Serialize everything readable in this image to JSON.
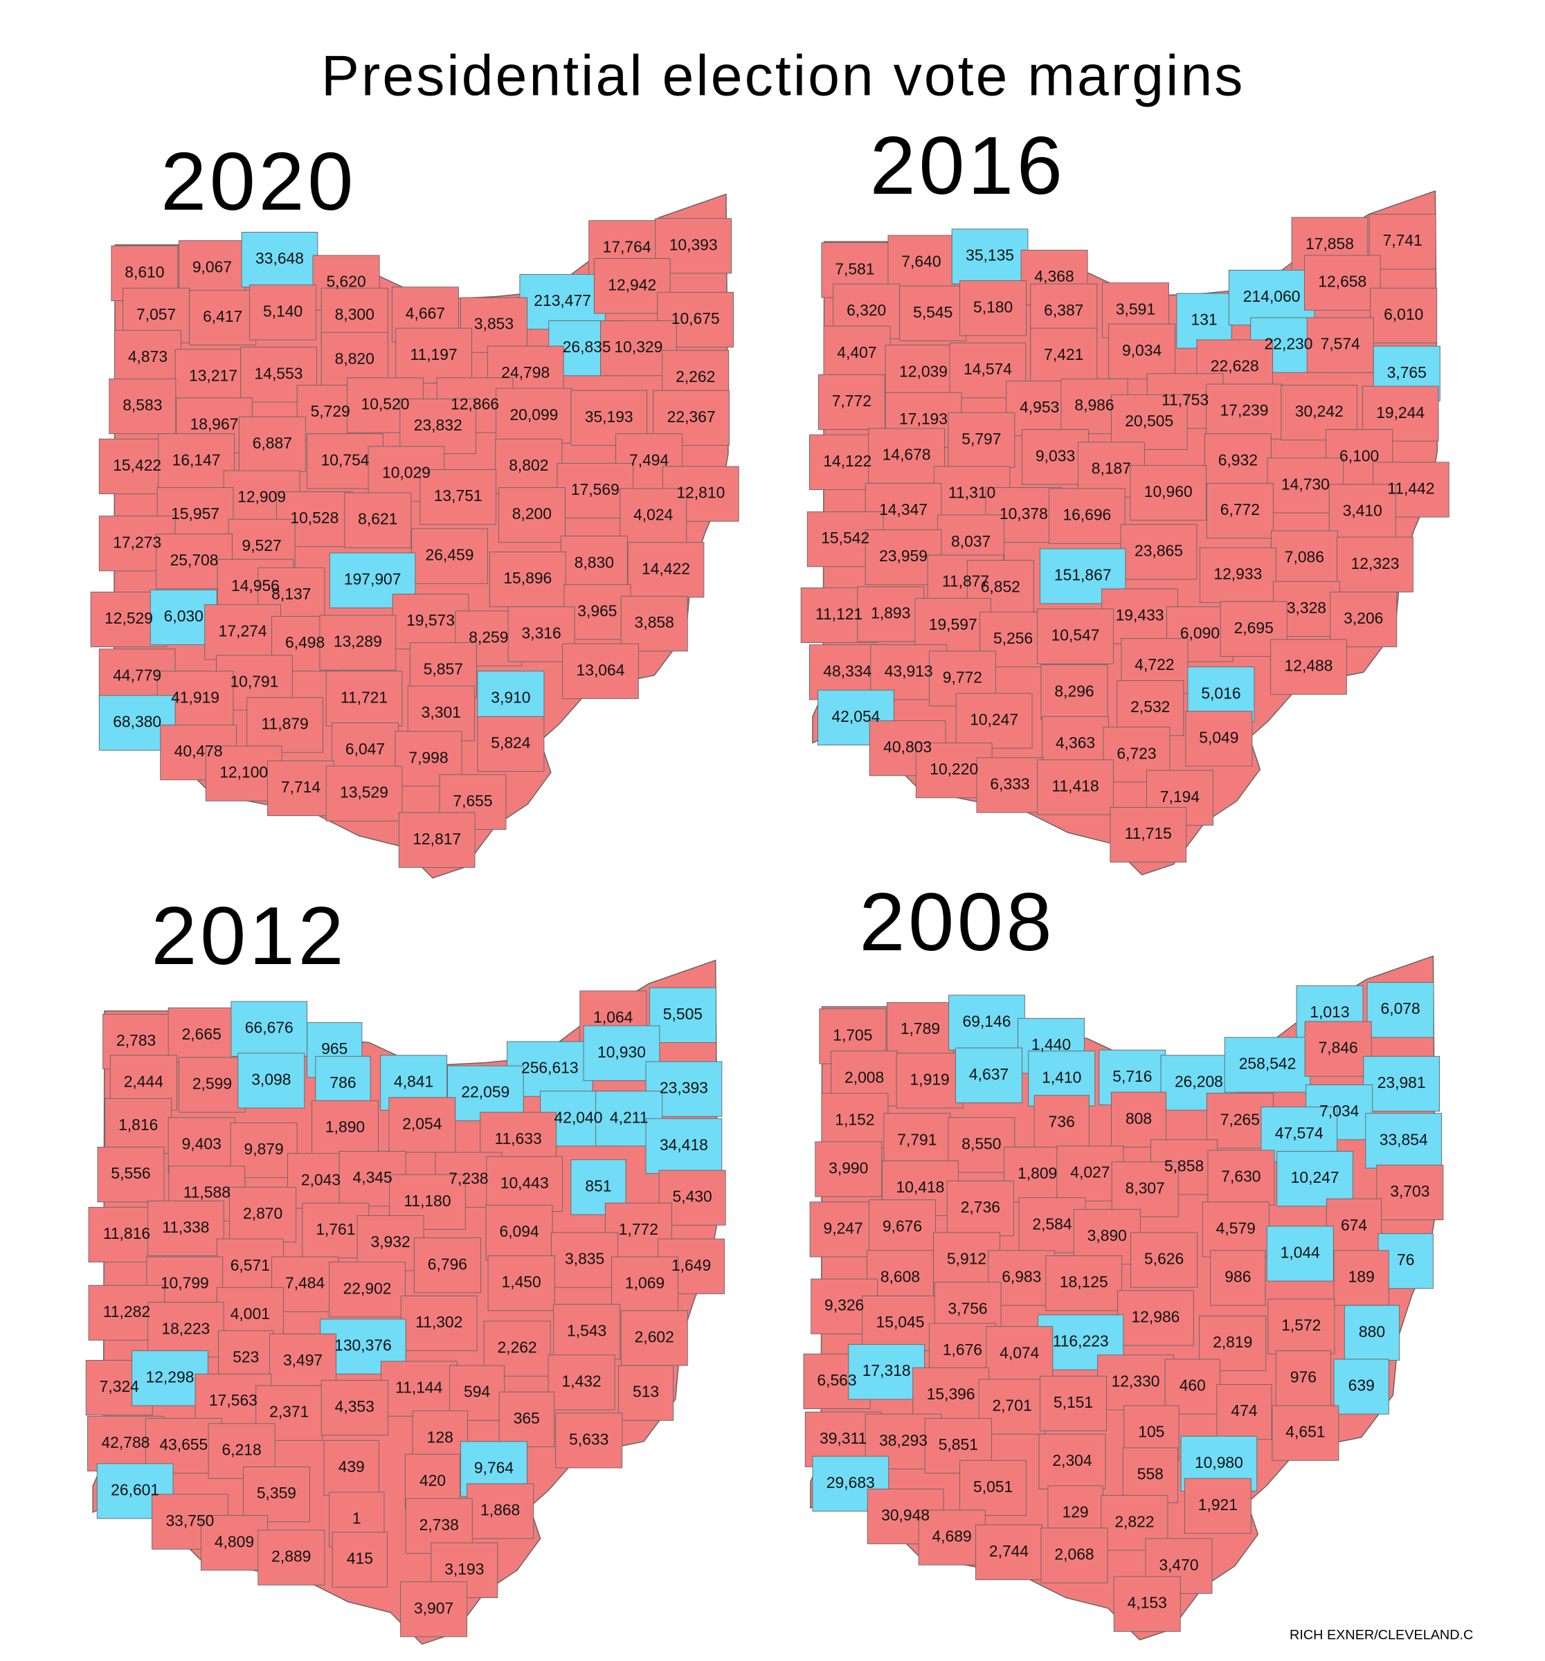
{
  "title": "Presidential election vote margins",
  "credit": "RICH EXNER/CLEVELAND.C",
  "colors": {
    "R": "#f27c7c",
    "D": "#70dcf6"
  },
  "maps": [
    {
      "year": "2020",
      "counties": [
        [
          "8,610",
          "R"
        ],
        [
          "9,067",
          "R"
        ],
        [
          "33,648",
          "D"
        ],
        [
          "5,620",
          "R"
        ],
        [
          "17,764",
          "R"
        ],
        [
          "10,393",
          "R"
        ],
        [
          "7,057",
          "R"
        ],
        [
          "6,417",
          "R"
        ],
        [
          "5,140",
          "R"
        ],
        [
          "8,300",
          "R"
        ],
        [
          "4,667",
          "R"
        ],
        [
          "213,477",
          "D"
        ],
        [
          "12,942",
          "R"
        ],
        [
          "3,853",
          "R"
        ],
        [
          "10,675",
          "R"
        ],
        [
          "4,873",
          "R"
        ],
        [
          "8,820",
          "R"
        ],
        [
          "11,197",
          "R"
        ],
        [
          "26,835",
          "D"
        ],
        [
          "10,329",
          "R"
        ],
        [
          "13,217",
          "R"
        ],
        [
          "14,553",
          "R"
        ],
        [
          "24,798",
          "R"
        ],
        [
          "2,262",
          "R"
        ],
        [
          "8,583",
          "R"
        ],
        [
          "5,729",
          "R"
        ],
        [
          "10,520",
          "R"
        ],
        [
          "12,866",
          "R"
        ],
        [
          "18,967",
          "R"
        ],
        [
          "23,832",
          "R"
        ],
        [
          "20,099",
          "R"
        ],
        [
          "35,193",
          "R"
        ],
        [
          "22,367",
          "R"
        ],
        [
          "6,887",
          "R"
        ],
        [
          "15,422",
          "R"
        ],
        [
          "16,147",
          "R"
        ],
        [
          "10,754",
          "R"
        ],
        [
          "10,029",
          "R"
        ],
        [
          "8,802",
          "R"
        ],
        [
          "7,494",
          "R"
        ],
        [
          "12,909",
          "R"
        ],
        [
          "13,751",
          "R"
        ],
        [
          "17,569",
          "R"
        ],
        [
          "12,810",
          "R"
        ],
        [
          "15,957",
          "R"
        ],
        [
          "10,528",
          "R"
        ],
        [
          "8,621",
          "R"
        ],
        [
          "8,200",
          "R"
        ],
        [
          "4,024",
          "R"
        ],
        [
          "17,273",
          "R"
        ],
        [
          "9,527",
          "R"
        ],
        [
          "25,708",
          "R"
        ],
        [
          "26,459",
          "R"
        ],
        [
          "8,830",
          "R"
        ],
        [
          "197,907",
          "D"
        ],
        [
          "15,896",
          "R"
        ],
        [
          "14,422",
          "R"
        ],
        [
          "14,956",
          "R"
        ],
        [
          "8,137",
          "R"
        ],
        [
          "12,529",
          "R"
        ],
        [
          "6,030",
          "D"
        ],
        [
          "17,274",
          "R"
        ],
        [
          "19,573",
          "R"
        ],
        [
          "3,965",
          "R"
        ],
        [
          "3,858",
          "R"
        ],
        [
          "6,498",
          "R"
        ],
        [
          "13,289",
          "R"
        ],
        [
          "8,259",
          "R"
        ],
        [
          "3,316",
          "R"
        ],
        [
          "44,779",
          "R"
        ],
        [
          "5,857",
          "R"
        ],
        [
          "13,064",
          "R"
        ],
        [
          "10,791",
          "R"
        ],
        [
          "41,919",
          "R"
        ],
        [
          "11,721",
          "R"
        ],
        [
          "3,910",
          "D"
        ],
        [
          "68,380",
          "D"
        ],
        [
          "3,301",
          "R"
        ],
        [
          "11,879",
          "R"
        ],
        [
          "6,047",
          "R"
        ],
        [
          "7,998",
          "R"
        ],
        [
          "5,824",
          "R"
        ],
        [
          "40,478",
          "R"
        ],
        [
          "12,100",
          "R"
        ],
        [
          "7,714",
          "R"
        ],
        [
          "13,529",
          "R"
        ],
        [
          "7,655",
          "R"
        ],
        [
          "12,817",
          "R"
        ]
      ]
    },
    {
      "year": "2016",
      "counties": [
        [
          "7,581",
          "R"
        ],
        [
          "7,640",
          "R"
        ],
        [
          "35,135",
          "D"
        ],
        [
          "4,368",
          "R"
        ],
        [
          "17,858",
          "R"
        ],
        [
          "7,741",
          "R"
        ],
        [
          "6,320",
          "R"
        ],
        [
          "5,545",
          "R"
        ],
        [
          "5,180",
          "R"
        ],
        [
          "6,387",
          "R"
        ],
        [
          "3,591",
          "R"
        ],
        [
          "131",
          "D"
        ],
        [
          "214,060",
          "D"
        ],
        [
          "12,658",
          "R"
        ],
        [
          "6,010",
          "R"
        ],
        [
          "4,407",
          "R"
        ],
        [
          "7,421",
          "R"
        ],
        [
          "9,034",
          "R"
        ],
        [
          "22,230",
          "D"
        ],
        [
          "7,574",
          "R"
        ],
        [
          "22,628",
          "R"
        ],
        [
          "12,039",
          "R"
        ],
        [
          "14,574",
          "R"
        ],
        [
          "3,765",
          "D"
        ],
        [
          "7,772",
          "R"
        ],
        [
          "4,953",
          "R"
        ],
        [
          "8,986",
          "R"
        ],
        [
          "11,753",
          "R"
        ],
        [
          "17,239",
          "R"
        ],
        [
          "30,242",
          "R"
        ],
        [
          "19,244",
          "R"
        ],
        [
          "17,193",
          "R"
        ],
        [
          "20,505",
          "R"
        ],
        [
          "5,797",
          "R"
        ],
        [
          "14,122",
          "R"
        ],
        [
          "14,678",
          "R"
        ],
        [
          "9,033",
          "R"
        ],
        [
          "8,187",
          "R"
        ],
        [
          "6,932",
          "R"
        ],
        [
          "6,100",
          "R"
        ],
        [
          "11,310",
          "R"
        ],
        [
          "14,730",
          "R"
        ],
        [
          "11,442",
          "R"
        ],
        [
          "10,960",
          "R"
        ],
        [
          "14,347",
          "R"
        ],
        [
          "10,378",
          "R"
        ],
        [
          "16,696",
          "R"
        ],
        [
          "6,772",
          "R"
        ],
        [
          "3,410",
          "R"
        ],
        [
          "15,542",
          "R"
        ],
        [
          "8,037",
          "R"
        ],
        [
          "23,865",
          "R"
        ],
        [
          "7,086",
          "R"
        ],
        [
          "12,323",
          "R"
        ],
        [
          "23,959",
          "R"
        ],
        [
          "151,867",
          "D"
        ],
        [
          "12,933",
          "R"
        ],
        [
          "11,877",
          "R"
        ],
        [
          "6,852",
          "R"
        ],
        [
          "11,121",
          "R"
        ],
        [
          "1,893",
          "R"
        ],
        [
          "19,597",
          "R"
        ],
        [
          "19,433",
          "R"
        ],
        [
          "3,328",
          "R"
        ],
        [
          "3,206",
          "R"
        ],
        [
          "6,090",
          "R"
        ],
        [
          "2,695",
          "R"
        ],
        [
          "5,256",
          "R"
        ],
        [
          "10,547",
          "R"
        ],
        [
          "48,334",
          "R"
        ],
        [
          "43,913",
          "R"
        ],
        [
          "9,772",
          "R"
        ],
        [
          "4,722",
          "R"
        ],
        [
          "12,488",
          "R"
        ],
        [
          "5,016",
          "D"
        ],
        [
          "8,296",
          "R"
        ],
        [
          "2,532",
          "R"
        ],
        [
          "42,054",
          "D"
        ],
        [
          "10,247",
          "R"
        ],
        [
          "5,049",
          "R"
        ],
        [
          "40,803",
          "R"
        ],
        [
          "4,363",
          "R"
        ],
        [
          "6,723",
          "R"
        ],
        [
          "10,220",
          "R"
        ],
        [
          "6,333",
          "R"
        ],
        [
          "11,418",
          "R"
        ],
        [
          "7,194",
          "R"
        ],
        [
          "11,715",
          "R"
        ]
      ]
    },
    {
      "year": "2012",
      "counties": [
        [
          "2,783",
          "R"
        ],
        [
          "2,665",
          "R"
        ],
        [
          "66,676",
          "D"
        ],
        [
          "965",
          "D"
        ],
        [
          "1,064",
          "R"
        ],
        [
          "5,505",
          "D"
        ],
        [
          "2,444",
          "R"
        ],
        [
          "2,599",
          "R"
        ],
        [
          "3,098",
          "D"
        ],
        [
          "786",
          "D"
        ],
        [
          "4,841",
          "D"
        ],
        [
          "256,613",
          "D"
        ],
        [
          "10,930",
          "D"
        ],
        [
          "22,059",
          "D"
        ],
        [
          "23,393",
          "D"
        ],
        [
          "42,040",
          "D"
        ],
        [
          "4,211",
          "D"
        ],
        [
          "1,816",
          "R"
        ],
        [
          "1,890",
          "R"
        ],
        [
          "2,054",
          "R"
        ],
        [
          "9,403",
          "R"
        ],
        [
          "9,879",
          "R"
        ],
        [
          "11,633",
          "R"
        ],
        [
          "34,418",
          "D"
        ],
        [
          "5,556",
          "R"
        ],
        [
          "2,043",
          "R"
        ],
        [
          "4,345",
          "R"
        ],
        [
          "7,238",
          "R"
        ],
        [
          "10,443",
          "R"
        ],
        [
          "851",
          "D"
        ],
        [
          "11,588",
          "R"
        ],
        [
          "11,180",
          "R"
        ],
        [
          "5,430",
          "R"
        ],
        [
          "2,870",
          "R"
        ],
        [
          "11,816",
          "R"
        ],
        [
          "11,338",
          "R"
        ],
        [
          "1,761",
          "R"
        ],
        [
          "3,932",
          "R"
        ],
        [
          "6,094",
          "R"
        ],
        [
          "1,772",
          "R"
        ],
        [
          "6,796",
          "R"
        ],
        [
          "3,835",
          "R"
        ],
        [
          "1,649",
          "R"
        ],
        [
          "6,571",
          "R"
        ],
        [
          "10,799",
          "R"
        ],
        [
          "7,484",
          "R"
        ],
        [
          "22,902",
          "R"
        ],
        [
          "1,450",
          "R"
        ],
        [
          "1,069",
          "R"
        ],
        [
          "11,282",
          "R"
        ],
        [
          "4,001",
          "R"
        ],
        [
          "11,302",
          "R"
        ],
        [
          "18,223",
          "R"
        ],
        [
          "130,376",
          "D"
        ],
        [
          "1,543",
          "R"
        ],
        [
          "2,602",
          "R"
        ],
        [
          "2,262",
          "R"
        ],
        [
          "523",
          "R"
        ],
        [
          "3,497",
          "R"
        ],
        [
          "7,324",
          "R"
        ],
        [
          "12,298",
          "D"
        ],
        [
          "11,144",
          "R"
        ],
        [
          "594",
          "R"
        ],
        [
          "1,432",
          "R"
        ],
        [
          "513",
          "R"
        ],
        [
          "17,563",
          "R"
        ],
        [
          "2,371",
          "R"
        ],
        [
          "4,353",
          "R"
        ],
        [
          "365",
          "R"
        ],
        [
          "42,788",
          "R"
        ],
        [
          "43,655",
          "R"
        ],
        [
          "6,218",
          "R"
        ],
        [
          "128",
          "R"
        ],
        [
          "5,633",
          "R"
        ],
        [
          "9,764",
          "D"
        ],
        [
          "439",
          "R"
        ],
        [
          "420",
          "R"
        ],
        [
          "26,601",
          "D"
        ],
        [
          "5,359",
          "R"
        ],
        [
          "1,868",
          "R"
        ],
        [
          "33,750",
          "R"
        ],
        [
          "1",
          "R"
        ],
        [
          "2,738",
          "R"
        ],
        [
          "4,809",
          "R"
        ],
        [
          "2,889",
          "R"
        ],
        [
          "415",
          "R"
        ],
        [
          "3,193",
          "R"
        ],
        [
          "3,907",
          "R"
        ]
      ]
    },
    {
      "year": "2008",
      "counties": [
        [
          "1,705",
          "R"
        ],
        [
          "1,789",
          "R"
        ],
        [
          "69,146",
          "D"
        ],
        [
          "1,440",
          "D"
        ],
        [
          "1,013",
          "D"
        ],
        [
          "6,078",
          "D"
        ],
        [
          "2,008",
          "R"
        ],
        [
          "1,919",
          "R"
        ],
        [
          "4,637",
          "D"
        ],
        [
          "1,410",
          "D"
        ],
        [
          "5,716",
          "D"
        ],
        [
          "26,208",
          "D"
        ],
        [
          "258,542",
          "D"
        ],
        [
          "7,846",
          "R"
        ],
        [
          "23,981",
          "D"
        ],
        [
          "1,152",
          "R"
        ],
        [
          "736",
          "R"
        ],
        [
          "808",
          "R"
        ],
        [
          "7,265",
          "R"
        ],
        [
          "7,034",
          "D"
        ],
        [
          "47,574",
          "D"
        ],
        [
          "7,791",
          "R"
        ],
        [
          "8,550",
          "R"
        ],
        [
          "33,854",
          "D"
        ],
        [
          "3,990",
          "R"
        ],
        [
          "1,809",
          "R"
        ],
        [
          "4,027",
          "R"
        ],
        [
          "5,858",
          "R"
        ],
        [
          "7,630",
          "R"
        ],
        [
          "10,247",
          "D"
        ],
        [
          "10,418",
          "R"
        ],
        [
          "8,307",
          "R"
        ],
        [
          "3,703",
          "R"
        ],
        [
          "2,736",
          "R"
        ],
        [
          "9,247",
          "R"
        ],
        [
          "9,676",
          "R"
        ],
        [
          "2,584",
          "R"
        ],
        [
          "4,579",
          "R"
        ],
        [
          "674",
          "R"
        ],
        [
          "3,890",
          "R"
        ],
        [
          "76",
          "D"
        ],
        [
          "5,626",
          "R"
        ],
        [
          "1,044",
          "D"
        ],
        [
          "5,912",
          "R"
        ],
        [
          "8,608",
          "R"
        ],
        [
          "6,983",
          "R"
        ],
        [
          "18,125",
          "R"
        ],
        [
          "986",
          "R"
        ],
        [
          "189",
          "R"
        ],
        [
          "9,326",
          "R"
        ],
        [
          "15,045",
          "R"
        ],
        [
          "3,756",
          "R"
        ],
        [
          "12,986",
          "R"
        ],
        [
          "116,223",
          "D"
        ],
        [
          "1,572",
          "R"
        ],
        [
          "880",
          "D"
        ],
        [
          "2,819",
          "R"
        ],
        [
          "1,676",
          "R"
        ],
        [
          "4,074",
          "R"
        ],
        [
          "6,563",
          "R"
        ],
        [
          "17,318",
          "D"
        ],
        [
          "976",
          "R"
        ],
        [
          "12,330",
          "R"
        ],
        [
          "460",
          "R"
        ],
        [
          "639",
          "D"
        ],
        [
          "15,396",
          "R"
        ],
        [
          "2,701",
          "R"
        ],
        [
          "5,151",
          "R"
        ],
        [
          "474",
          "R"
        ],
        [
          "39,311",
          "R"
        ],
        [
          "38,293",
          "R"
        ],
        [
          "5,851",
          "R"
        ],
        [
          "105",
          "R"
        ],
        [
          "4,651",
          "R"
        ],
        [
          "10,980",
          "D"
        ],
        [
          "2,304",
          "R"
        ],
        [
          "558",
          "R"
        ],
        [
          "29,683",
          "D"
        ],
        [
          "5,051",
          "R"
        ],
        [
          "1,921",
          "R"
        ],
        [
          "129",
          "R"
        ],
        [
          "30,948",
          "R"
        ],
        [
          "2,822",
          "R"
        ],
        [
          "4,689",
          "R"
        ],
        [
          "2,744",
          "R"
        ],
        [
          "2,068",
          "R"
        ],
        [
          "3,470",
          "R"
        ],
        [
          "4,153",
          "R"
        ]
      ]
    }
  ]
}
